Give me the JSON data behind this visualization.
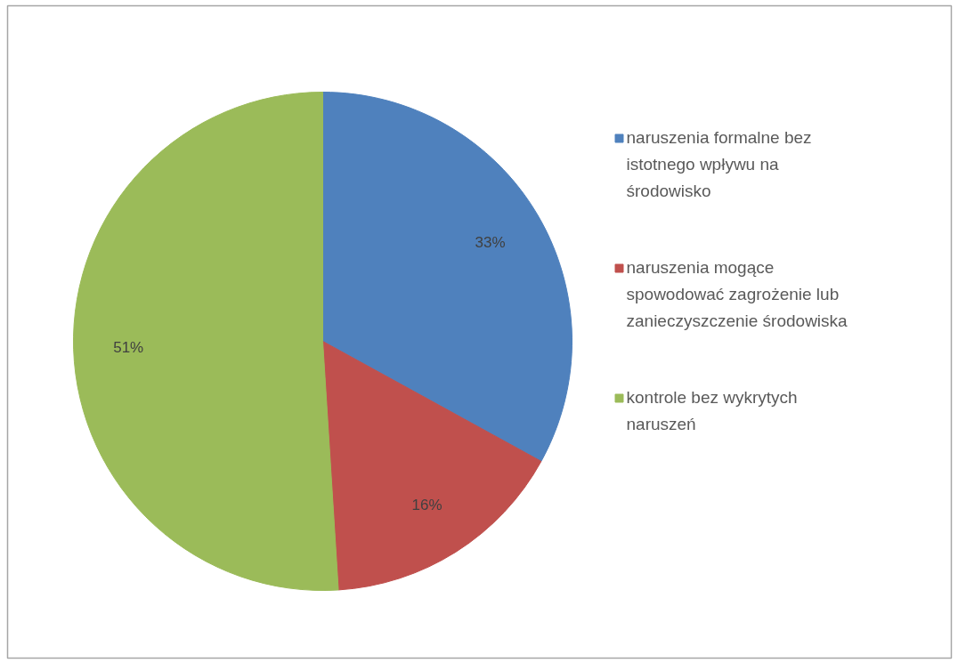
{
  "chart_data": {
    "type": "pie",
    "categories": [
      "naruszenia formalne bez istotnego wpływu na środowisko",
      "naruszenia mogące spowodować zagrożenie lub zanieczyszczenie środowiska",
      "kontrole bez wykrytych naruszeń"
    ],
    "values": [
      33,
      16,
      51
    ],
    "colors": [
      "#4f81bd",
      "#c0504d",
      "#9bbb59"
    ],
    "value_labels": [
      "33%",
      "16%",
      "51%"
    ],
    "legend": "right"
  }
}
